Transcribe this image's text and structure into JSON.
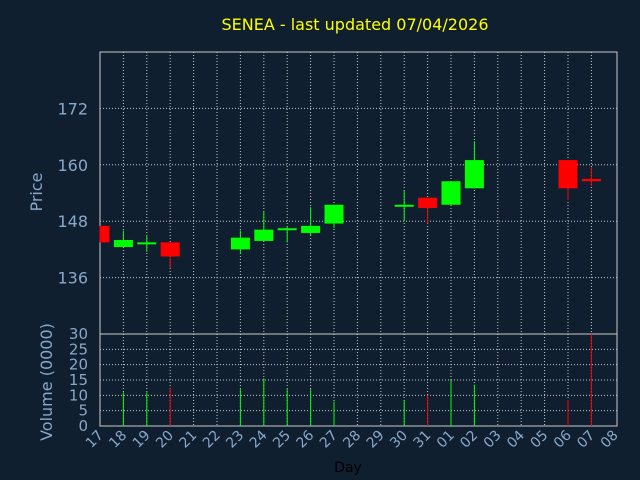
{
  "chart_data": {
    "type": "candlestick",
    "title": "SENEA - last updated 07/04/2026",
    "price_axis": {
      "label": "Price",
      "ylim": [
        124,
        184
      ],
      "ticks": [
        136,
        148,
        160,
        172
      ]
    },
    "volume_axis": {
      "label": "Volume (0000)",
      "ylim": [
        0,
        30
      ],
      "ticks": [
        0,
        5,
        10,
        15,
        20,
        25,
        30
      ]
    },
    "xlabel": "Day",
    "x_tick_labels": [
      "17",
      "18",
      "19",
      "20",
      "21",
      "22",
      "23",
      "24",
      "25",
      "26",
      "27",
      "28",
      "29",
      "30",
      "31",
      "01",
      "02",
      "03",
      "04",
      "05",
      "06",
      "07",
      "08"
    ],
    "grid": true,
    "colors": {
      "up": "#00ff00",
      "down": "#ff0000",
      "background": "#0f1f30",
      "title": "#ffff00",
      "axis_text": "#8aa8c8",
      "grid": "#c8c8c8"
    },
    "candles": [
      {
        "day": "17",
        "open": 147.0,
        "high": 147.0,
        "low": 143.5,
        "close": 143.5
      },
      {
        "day": "18",
        "open": 142.5,
        "high": 146.0,
        "low": 142.5,
        "close": 144.0
      },
      {
        "day": "19",
        "open": 143.5,
        "high": 145.0,
        "low": 141.5,
        "close": 143.5
      },
      {
        "day": "20",
        "open": 143.5,
        "high": 143.5,
        "low": 138.0,
        "close": 140.5
      },
      {
        "day": "23",
        "open": 142.0,
        "high": 146.0,
        "low": 141.0,
        "close": 144.5
      },
      {
        "day": "24",
        "open": 143.8,
        "high": 150.0,
        "low": 143.8,
        "close": 146.2
      },
      {
        "day": "25",
        "open": 146.3,
        "high": 147.0,
        "low": 143.5,
        "close": 146.5
      },
      {
        "day": "26",
        "open": 145.5,
        "high": 151.0,
        "low": 145.0,
        "close": 147.0
      },
      {
        "day": "27",
        "open": 147.5,
        "high": 151.5,
        "low": 146.5,
        "close": 151.5
      },
      {
        "day": "30",
        "open": 151.5,
        "high": 154.5,
        "low": 148.0,
        "close": 151.5
      },
      {
        "day": "31",
        "open": 153.0,
        "high": 153.0,
        "low": 147.5,
        "close": 150.8
      },
      {
        "day": "01",
        "open": 151.5,
        "high": 156.5,
        "low": 151.5,
        "close": 156.5
      },
      {
        "day": "02",
        "open": 155.0,
        "high": 165.0,
        "low": 155.0,
        "close": 161.0
      },
      {
        "day": "06",
        "open": 161.0,
        "high": 161.0,
        "low": 152.5,
        "close": 155.0
      },
      {
        "day": "07",
        "open": 157.0,
        "high": 159.5,
        "low": 155.5,
        "close": 156.5
      }
    ],
    "volume": [
      {
        "day": "18",
        "value": 11
      },
      {
        "day": "19",
        "value": 11
      },
      {
        "day": "20",
        "value": 12.5
      },
      {
        "day": "23",
        "value": 12
      },
      {
        "day": "24",
        "value": 15.5
      },
      {
        "day": "25",
        "value": 12
      },
      {
        "day": "26",
        "value": 12
      },
      {
        "day": "27",
        "value": 8
      },
      {
        "day": "30",
        "value": 8.5
      },
      {
        "day": "31",
        "value": 10
      },
      {
        "day": "01",
        "value": 15
      },
      {
        "day": "02",
        "value": 13.5
      },
      {
        "day": "06",
        "value": 8.5
      },
      {
        "day": "07",
        "value": 30
      }
    ]
  }
}
